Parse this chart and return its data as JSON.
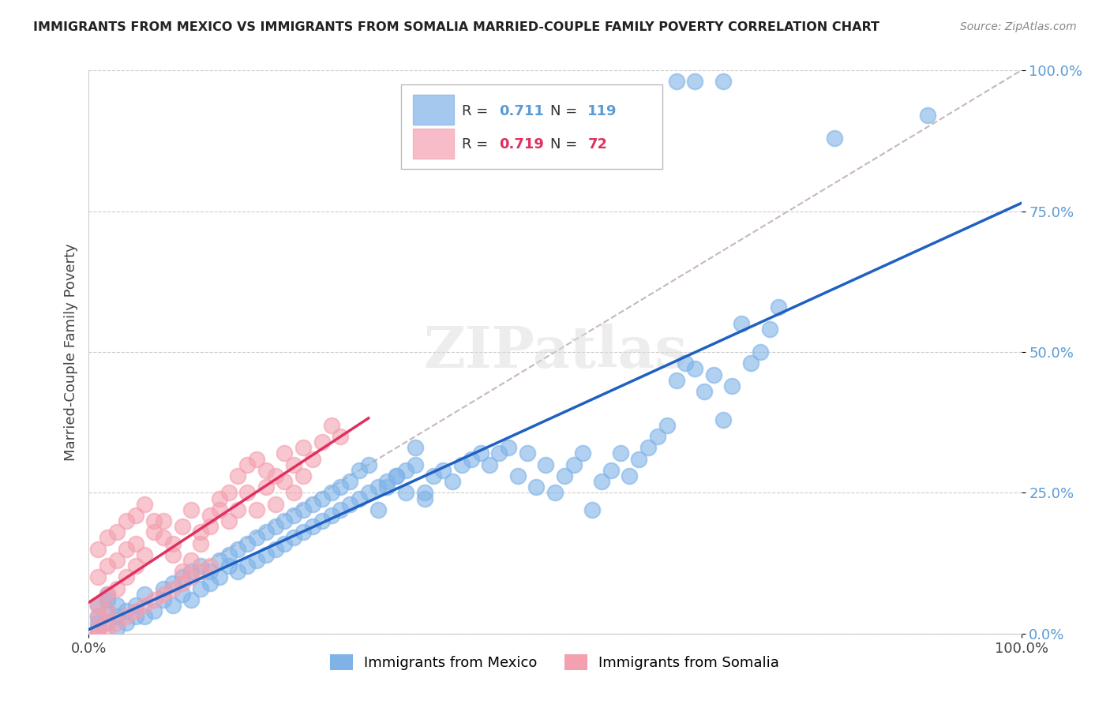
{
  "title": "IMMIGRANTS FROM MEXICO VS IMMIGRANTS FROM SOMALIA MARRIED-COUPLE FAMILY POVERTY CORRELATION CHART",
  "source": "Source: ZipAtlas.com",
  "xlabel": "",
  "ylabel": "Married-Couple Family Poverty",
  "xlim": [
    0,
    1
  ],
  "ylim": [
    0,
    1
  ],
  "xtick_labels": [
    "0.0%",
    "100.0%"
  ],
  "ytick_labels": [
    "0.0%",
    "25.0%",
    "50.0%",
    "75.0%",
    "100.0%"
  ],
  "ytick_positions": [
    0.0,
    0.25,
    0.5,
    0.75,
    1.0
  ],
  "mexico_R": 0.711,
  "mexico_N": 119,
  "somalia_R": 0.719,
  "somalia_N": 72,
  "mexico_color": "#7FB3E8",
  "somalia_color": "#F4A0B0",
  "mexico_line_color": "#2060C0",
  "somalia_line_color": "#E03060",
  "diagonal_color": "#C8B8B8",
  "legend_box_color": "#7FB3E8",
  "legend_box_color2": "#F4A0B0",
  "watermark": "ZIPatlas",
  "background_color": "#FFFFFF",
  "mexico_scatter": [
    [
      0.02,
      0.02
    ],
    [
      0.01,
      0.01
    ],
    [
      0.03,
      0.03
    ],
    [
      0.02,
      0.04
    ],
    [
      0.01,
      0.05
    ],
    [
      0.04,
      0.02
    ],
    [
      0.03,
      0.01
    ],
    [
      0.05,
      0.03
    ],
    [
      0.01,
      0.03
    ],
    [
      0.02,
      0.06
    ],
    [
      0.01,
      0.02
    ],
    [
      0.04,
      0.04
    ],
    [
      0.03,
      0.05
    ],
    [
      0.06,
      0.03
    ],
    [
      0.02,
      0.07
    ],
    [
      0.05,
      0.05
    ],
    [
      0.07,
      0.04
    ],
    [
      0.08,
      0.06
    ],
    [
      0.06,
      0.07
    ],
    [
      0.09,
      0.05
    ],
    [
      0.1,
      0.07
    ],
    [
      0.08,
      0.08
    ],
    [
      0.11,
      0.06
    ],
    [
      0.12,
      0.08
    ],
    [
      0.09,
      0.09
    ],
    [
      0.1,
      0.1
    ],
    [
      0.13,
      0.09
    ],
    [
      0.11,
      0.11
    ],
    [
      0.14,
      0.1
    ],
    [
      0.12,
      0.12
    ],
    [
      0.13,
      0.11
    ],
    [
      0.15,
      0.12
    ],
    [
      0.14,
      0.13
    ],
    [
      0.16,
      0.11
    ],
    [
      0.15,
      0.14
    ],
    [
      0.17,
      0.12
    ],
    [
      0.16,
      0.15
    ],
    [
      0.18,
      0.13
    ],
    [
      0.17,
      0.16
    ],
    [
      0.19,
      0.14
    ],
    [
      0.2,
      0.15
    ],
    [
      0.18,
      0.17
    ],
    [
      0.21,
      0.16
    ],
    [
      0.19,
      0.18
    ],
    [
      0.22,
      0.17
    ],
    [
      0.2,
      0.19
    ],
    [
      0.23,
      0.18
    ],
    [
      0.21,
      0.2
    ],
    [
      0.24,
      0.19
    ],
    [
      0.22,
      0.21
    ],
    [
      0.25,
      0.2
    ],
    [
      0.23,
      0.22
    ],
    [
      0.26,
      0.21
    ],
    [
      0.24,
      0.23
    ],
    [
      0.27,
      0.22
    ],
    [
      0.28,
      0.23
    ],
    [
      0.25,
      0.24
    ],
    [
      0.29,
      0.24
    ],
    [
      0.26,
      0.25
    ],
    [
      0.3,
      0.25
    ],
    [
      0.31,
      0.26
    ],
    [
      0.27,
      0.26
    ],
    [
      0.32,
      0.27
    ],
    [
      0.28,
      0.27
    ],
    [
      0.33,
      0.28
    ],
    [
      0.34,
      0.29
    ],
    [
      0.29,
      0.29
    ],
    [
      0.35,
      0.3
    ],
    [
      0.3,
      0.3
    ],
    [
      0.36,
      0.25
    ],
    [
      0.37,
      0.28
    ],
    [
      0.31,
      0.22
    ],
    [
      0.38,
      0.29
    ],
    [
      0.32,
      0.26
    ],
    [
      0.39,
      0.27
    ],
    [
      0.4,
      0.3
    ],
    [
      0.33,
      0.28
    ],
    [
      0.41,
      0.31
    ],
    [
      0.34,
      0.25
    ],
    [
      0.42,
      0.32
    ],
    [
      0.43,
      0.3
    ],
    [
      0.35,
      0.33
    ],
    [
      0.44,
      0.32
    ],
    [
      0.36,
      0.24
    ],
    [
      0.45,
      0.33
    ],
    [
      0.46,
      0.28
    ],
    [
      0.47,
      0.32
    ],
    [
      0.48,
      0.26
    ],
    [
      0.49,
      0.3
    ],
    [
      0.5,
      0.25
    ],
    [
      0.51,
      0.28
    ],
    [
      0.52,
      0.3
    ],
    [
      0.53,
      0.32
    ],
    [
      0.54,
      0.22
    ],
    [
      0.55,
      0.27
    ],
    [
      0.56,
      0.29
    ],
    [
      0.57,
      0.32
    ],
    [
      0.58,
      0.28
    ],
    [
      0.59,
      0.31
    ],
    [
      0.6,
      0.33
    ],
    [
      0.61,
      0.35
    ],
    [
      0.62,
      0.37
    ],
    [
      0.63,
      0.45
    ],
    [
      0.64,
      0.48
    ],
    [
      0.65,
      0.47
    ],
    [
      0.66,
      0.43
    ],
    [
      0.67,
      0.46
    ],
    [
      0.68,
      0.38
    ],
    [
      0.69,
      0.44
    ],
    [
      0.7,
      0.55
    ],
    [
      0.71,
      0.48
    ],
    [
      0.72,
      0.5
    ],
    [
      0.73,
      0.54
    ],
    [
      0.74,
      0.58
    ],
    [
      0.9,
      0.92
    ],
    [
      0.63,
      0.98
    ],
    [
      0.65,
      0.98
    ],
    [
      0.68,
      0.98
    ],
    [
      0.8,
      0.88
    ]
  ],
  "somalia_scatter": [
    [
      0.01,
      0.01
    ],
    [
      0.02,
      0.02
    ],
    [
      0.01,
      0.05
    ],
    [
      0.02,
      0.07
    ],
    [
      0.01,
      0.1
    ],
    [
      0.02,
      0.12
    ],
    [
      0.01,
      0.15
    ],
    [
      0.02,
      0.17
    ],
    [
      0.03,
      0.08
    ],
    [
      0.04,
      0.1
    ],
    [
      0.03,
      0.13
    ],
    [
      0.04,
      0.15
    ],
    [
      0.03,
      0.18
    ],
    [
      0.05,
      0.12
    ],
    [
      0.04,
      0.2
    ],
    [
      0.05,
      0.16
    ],
    [
      0.06,
      0.14
    ],
    [
      0.07,
      0.18
    ],
    [
      0.08,
      0.2
    ],
    [
      0.09,
      0.16
    ],
    [
      0.1,
      0.19
    ],
    [
      0.11,
      0.22
    ],
    [
      0.12,
      0.18
    ],
    [
      0.13,
      0.21
    ],
    [
      0.14,
      0.24
    ],
    [
      0.15,
      0.2
    ],
    [
      0.16,
      0.22
    ],
    [
      0.17,
      0.25
    ],
    [
      0.18,
      0.22
    ],
    [
      0.19,
      0.26
    ],
    [
      0.2,
      0.23
    ],
    [
      0.21,
      0.27
    ],
    [
      0.22,
      0.25
    ],
    [
      0.23,
      0.28
    ],
    [
      0.24,
      0.31
    ],
    [
      0.05,
      0.21
    ],
    [
      0.06,
      0.23
    ],
    [
      0.07,
      0.2
    ],
    [
      0.08,
      0.17
    ],
    [
      0.09,
      0.14
    ],
    [
      0.1,
      0.11
    ],
    [
      0.11,
      0.13
    ],
    [
      0.12,
      0.16
    ],
    [
      0.13,
      0.19
    ],
    [
      0.14,
      0.22
    ],
    [
      0.15,
      0.25
    ],
    [
      0.16,
      0.28
    ],
    [
      0.17,
      0.3
    ],
    [
      0.18,
      0.31
    ],
    [
      0.19,
      0.29
    ],
    [
      0.2,
      0.28
    ],
    [
      0.21,
      0.32
    ],
    [
      0.22,
      0.3
    ],
    [
      0.23,
      0.33
    ],
    [
      0.01,
      0.0
    ],
    [
      0.02,
      0.0
    ],
    [
      0.01,
      0.03
    ],
    [
      0.02,
      0.04
    ],
    [
      0.03,
      0.02
    ],
    [
      0.04,
      0.03
    ],
    [
      0.05,
      0.04
    ],
    [
      0.06,
      0.05
    ],
    [
      0.07,
      0.06
    ],
    [
      0.08,
      0.07
    ],
    [
      0.09,
      0.08
    ],
    [
      0.1,
      0.09
    ],
    [
      0.11,
      0.1
    ],
    [
      0.12,
      0.11
    ],
    [
      0.13,
      0.12
    ],
    [
      0.25,
      0.34
    ],
    [
      0.26,
      0.37
    ],
    [
      0.27,
      0.35
    ]
  ]
}
